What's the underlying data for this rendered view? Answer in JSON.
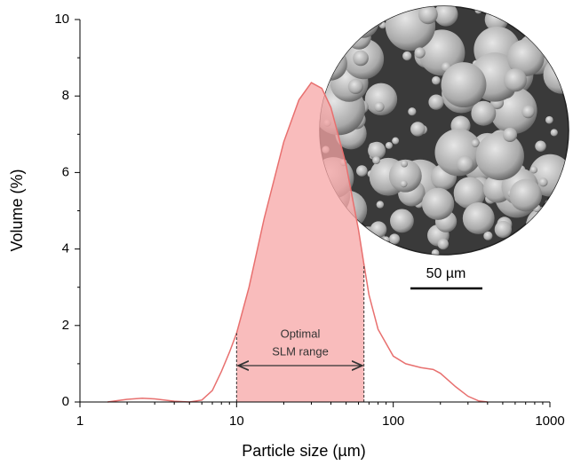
{
  "chart_data": {
    "type": "area",
    "xlabel": "Particle size (µm)",
    "ylabel": "Volume (%)",
    "x": [
      1.5,
      2,
      2.5,
      3,
      4,
      5,
      6,
      7,
      8,
      9,
      10,
      12,
      15,
      20,
      25,
      30,
      35,
      40,
      50,
      60,
      65,
      70,
      80,
      100,
      120,
      150,
      180,
      200,
      250,
      300,
      350,
      400
    ],
    "values": [
      0,
      0.07,
      0.1,
      0.08,
      0.02,
      0,
      0.05,
      0.3,
      0.8,
      1.3,
      1.8,
      3.0,
      4.8,
      6.8,
      7.9,
      8.35,
      8.2,
      7.7,
      6.2,
      4.5,
      3.6,
      2.8,
      1.9,
      1.2,
      1.0,
      0.9,
      0.85,
      0.75,
      0.4,
      0.15,
      0.03,
      0
    ],
    "color": "#e8706f",
    "fill_color": "#f7a5a5",
    "xscale": "log",
    "xlim": [
      1,
      1000
    ],
    "xticks": [
      1,
      10,
      100,
      1000
    ],
    "ylim": [
      0,
      10
    ],
    "yticks": [
      0,
      2,
      4,
      6,
      8,
      10
    ],
    "shaded_range": [
      10,
      65
    ],
    "annotation": [
      "Optimal",
      "SLM range"
    ],
    "scale_bar_label": "50 µm"
  }
}
